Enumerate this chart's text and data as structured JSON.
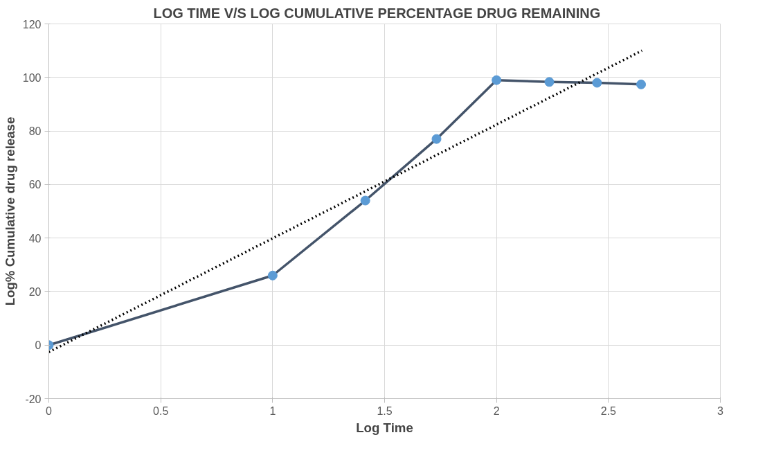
{
  "chart_data": {
    "type": "line",
    "title": "LOG TIME    V/S  LOG CUMULATIVE PERCENTAGE DRUG REMAINING",
    "xlabel": "Log Time",
    "ylabel": "Log% Cumulative drug release",
    "series": [
      {
        "color": "#44546a",
        "marker": "none",
        "line_style": "solid",
        "x": [
          0,
          1,
          1.414,
          1.732,
          2,
          2.236,
          2.449,
          2.646
        ],
        "values": [
          0,
          26,
          54,
          77,
          99,
          98.3,
          98,
          97.4
        ]
      },
      {
        "type": "scatter",
        "color": "#5b9bd5",
        "marker": "circle",
        "x": [
          0,
          1,
          1.414,
          1.732,
          2,
          2.236,
          2.449,
          2.646
        ],
        "values": [
          0,
          26,
          54,
          77,
          99,
          98.3,
          98,
          97.4
        ]
      },
      {
        "color": "#000000",
        "marker": "none",
        "line_style": "dotted",
        "x": [
          0,
          2.65
        ],
        "values": [
          -2.6,
          110
        ]
      }
    ],
    "xlim": [
      0,
      3
    ],
    "xticks": [
      0,
      0.5,
      1,
      1.5,
      2,
      2.5,
      3
    ],
    "ylim": [
      -20,
      120
    ],
    "yticks": [
      -20,
      0,
      20,
      40,
      60,
      80,
      100,
      120
    ],
    "grid": true
  }
}
